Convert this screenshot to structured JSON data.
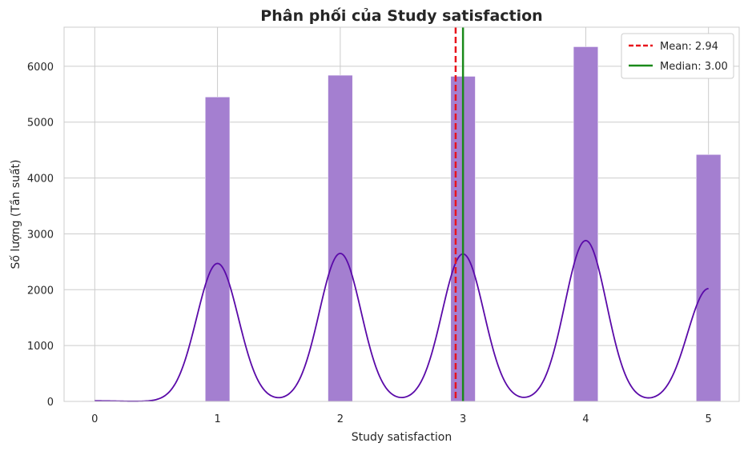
{
  "chart_data": {
    "type": "bar",
    "title": "Phân phối của Study satisfaction",
    "xlabel": "Study satisfaction",
    "ylabel": "Số lượng (Tần suất)",
    "xlim": [
      -0.25,
      5.25
    ],
    "ylim": [
      0,
      6700
    ],
    "x_ticks": [
      "0",
      "1",
      "2",
      "3",
      "4",
      "5"
    ],
    "y_ticks": [
      "0",
      "1000",
      "2000",
      "3000",
      "4000",
      "5000",
      "6000"
    ],
    "bar_width": 0.2,
    "bars": [
      {
        "x": 0,
        "value": 10
      },
      {
        "x": 1,
        "value": 5450
      },
      {
        "x": 2,
        "value": 5840
      },
      {
        "x": 3,
        "value": 5820
      },
      {
        "x": 4,
        "value": 6350
      },
      {
        "x": 5,
        "value": 4420
      }
    ],
    "kde": {
      "peaks": [
        {
          "x": 0,
          "value": 10
        },
        {
          "x": 1,
          "value": 2470
        },
        {
          "x": 2,
          "value": 2650
        },
        {
          "x": 3,
          "value": 2640
        },
        {
          "x": 4,
          "value": 2880
        },
        {
          "x": 5,
          "value": 2020
        }
      ],
      "sigma": 0.17,
      "range": [
        0,
        5
      ],
      "color": "#5a0aa8"
    },
    "mean": {
      "value": 2.94,
      "label": "Mean: 2.94",
      "color": "#e8141c",
      "style": "dashed"
    },
    "median": {
      "value": 3.0,
      "label": "Median: 3.00",
      "color": "#1a8a1a",
      "style": "solid"
    },
    "bar_color": "#a47fd0",
    "grid": true,
    "legend_position": "top-right"
  }
}
